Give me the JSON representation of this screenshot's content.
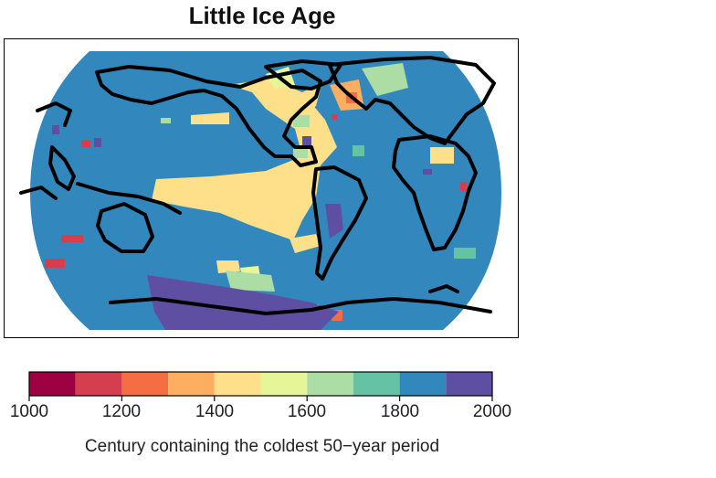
{
  "title": "Little Ice Age",
  "colorbar": {
    "title": "Century containing the coldest 50−year period",
    "ticks": [
      "1000",
      "1200",
      "1400",
      "1600",
      "1800",
      "2000"
    ],
    "bins": [
      1000,
      1100,
      1200,
      1300,
      1400,
      1500,
      1600,
      1700,
      1800,
      1900,
      2000
    ],
    "colors": [
      "#9e0142",
      "#d53e4f",
      "#f46d43",
      "#fdae61",
      "#fee08b",
      "#e6f598",
      "#abdda4",
      "#66c2a5",
      "#3288bd",
      "#5e4fa2"
    ]
  },
  "colors": {
    "ocean_background": "#3288bd",
    "coastline": "#000000"
  }
}
